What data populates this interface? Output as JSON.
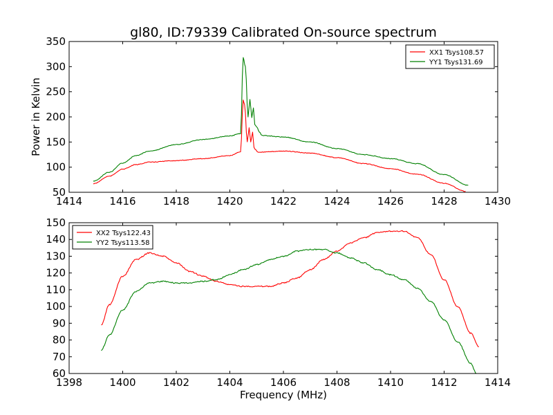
{
  "figure": {
    "title": "gl80, ID:79339 Calibrated On-source spectrum"
  },
  "colors": {
    "red": "#ff0000",
    "green": "#008000",
    "axes": "#000000",
    "background": "#ffffff"
  },
  "chart_data": [
    {
      "type": "line",
      "title": "gl80, ID:79339 Calibrated On-source spectrum",
      "xlabel": "",
      "ylabel": "Power in Kelvin",
      "xlim": [
        1414,
        1430
      ],
      "ylim": [
        50,
        350
      ],
      "xticks": [
        1414,
        1416,
        1418,
        1420,
        1422,
        1424,
        1426,
        1428,
        1430
      ],
      "yticks": [
        50,
        100,
        150,
        200,
        250,
        300,
        350
      ],
      "grid": false,
      "legend_position": "top-right",
      "series": [
        {
          "name": "XX1 Tsys108.57",
          "color": "#ff0000",
          "x": [
            1414.9,
            1415.5,
            1416.0,
            1416.5,
            1417.0,
            1418.0,
            1419.0,
            1420.0,
            1420.4,
            1420.5,
            1420.55,
            1420.65,
            1420.72,
            1420.78,
            1420.85,
            1420.9,
            1420.95,
            1421.05,
            1421.2,
            1422.0,
            1423.0,
            1424.0,
            1425.0,
            1426.0,
            1427.0,
            1428.0,
            1428.8
          ],
          "y": [
            67,
            82,
            96,
            105,
            110,
            113,
            117,
            123,
            130,
            233,
            225,
            150,
            178,
            150,
            170,
            140,
            135,
            130,
            130,
            132,
            128,
            119,
            107,
            97,
            86,
            68,
            52
          ]
        },
        {
          "name": "YY1 Tsys131.69",
          "color": "#008000",
          "x": [
            1414.9,
            1415.5,
            1416.0,
            1416.5,
            1417.0,
            1418.0,
            1419.0,
            1420.0,
            1420.4,
            1420.5,
            1420.58,
            1420.68,
            1420.75,
            1420.82,
            1420.88,
            1420.93,
            1421.0,
            1421.1,
            1421.2,
            1422.0,
            1423.0,
            1424.0,
            1425.0,
            1426.0,
            1427.0,
            1428.0,
            1428.9
          ],
          "y": [
            72,
            90,
            108,
            123,
            132,
            145,
            155,
            162,
            167,
            318,
            300,
            200,
            235,
            198,
            218,
            185,
            180,
            170,
            163,
            160,
            150,
            137,
            125,
            117,
            107,
            85,
            64
          ]
        }
      ]
    },
    {
      "type": "line",
      "title": "",
      "xlabel": "Frequency (MHz)",
      "ylabel": "",
      "xlim": [
        1398,
        1414
      ],
      "ylim": [
        60,
        150
      ],
      "xticks": [
        1398,
        1400,
        1402,
        1404,
        1406,
        1408,
        1410,
        1412,
        1414
      ],
      "yticks": [
        60,
        70,
        80,
        90,
        100,
        110,
        120,
        130,
        140,
        150
      ],
      "grid": false,
      "legend_position": "top-left",
      "series": [
        {
          "name": "XX2 Tsys122.43",
          "color": "#ff0000",
          "x": [
            1399.2,
            1399.5,
            1400.0,
            1400.5,
            1401.0,
            1401.5,
            1402.0,
            1402.5,
            1403.0,
            1403.5,
            1404.0,
            1404.5,
            1405.0,
            1405.5,
            1406.0,
            1406.5,
            1407.0,
            1407.5,
            1408.0,
            1408.5,
            1409.0,
            1409.5,
            1410.0,
            1410.5,
            1411.0,
            1411.5,
            1412.0,
            1412.5,
            1413.0,
            1413.3
          ],
          "y": [
            89,
            101,
            118,
            128,
            132,
            130,
            126,
            121,
            118,
            115,
            113,
            112,
            112,
            112,
            114,
            117,
            122,
            128,
            133,
            138,
            141,
            144,
            145,
            145,
            141,
            131,
            116,
            100,
            84,
            76
          ]
        },
        {
          "name": "YY2 Tsys113.58",
          "color": "#008000",
          "x": [
            1399.2,
            1399.5,
            1400.0,
            1400.5,
            1401.0,
            1401.5,
            1402.0,
            1402.5,
            1403.0,
            1403.5,
            1404.0,
            1404.5,
            1405.0,
            1405.5,
            1406.0,
            1406.5,
            1407.0,
            1407.5,
            1408.0,
            1408.5,
            1409.0,
            1409.5,
            1410.0,
            1410.5,
            1411.0,
            1411.5,
            1412.0,
            1412.5,
            1413.0,
            1413.2
          ],
          "y": [
            74,
            83,
            98,
            109,
            114,
            115,
            114,
            114,
            115,
            116,
            119,
            122,
            125,
            128,
            130,
            133,
            134,
            134,
            132,
            129,
            126,
            122,
            119,
            116,
            111,
            103,
            92,
            79,
            66,
            60
          ]
        }
      ]
    }
  ]
}
